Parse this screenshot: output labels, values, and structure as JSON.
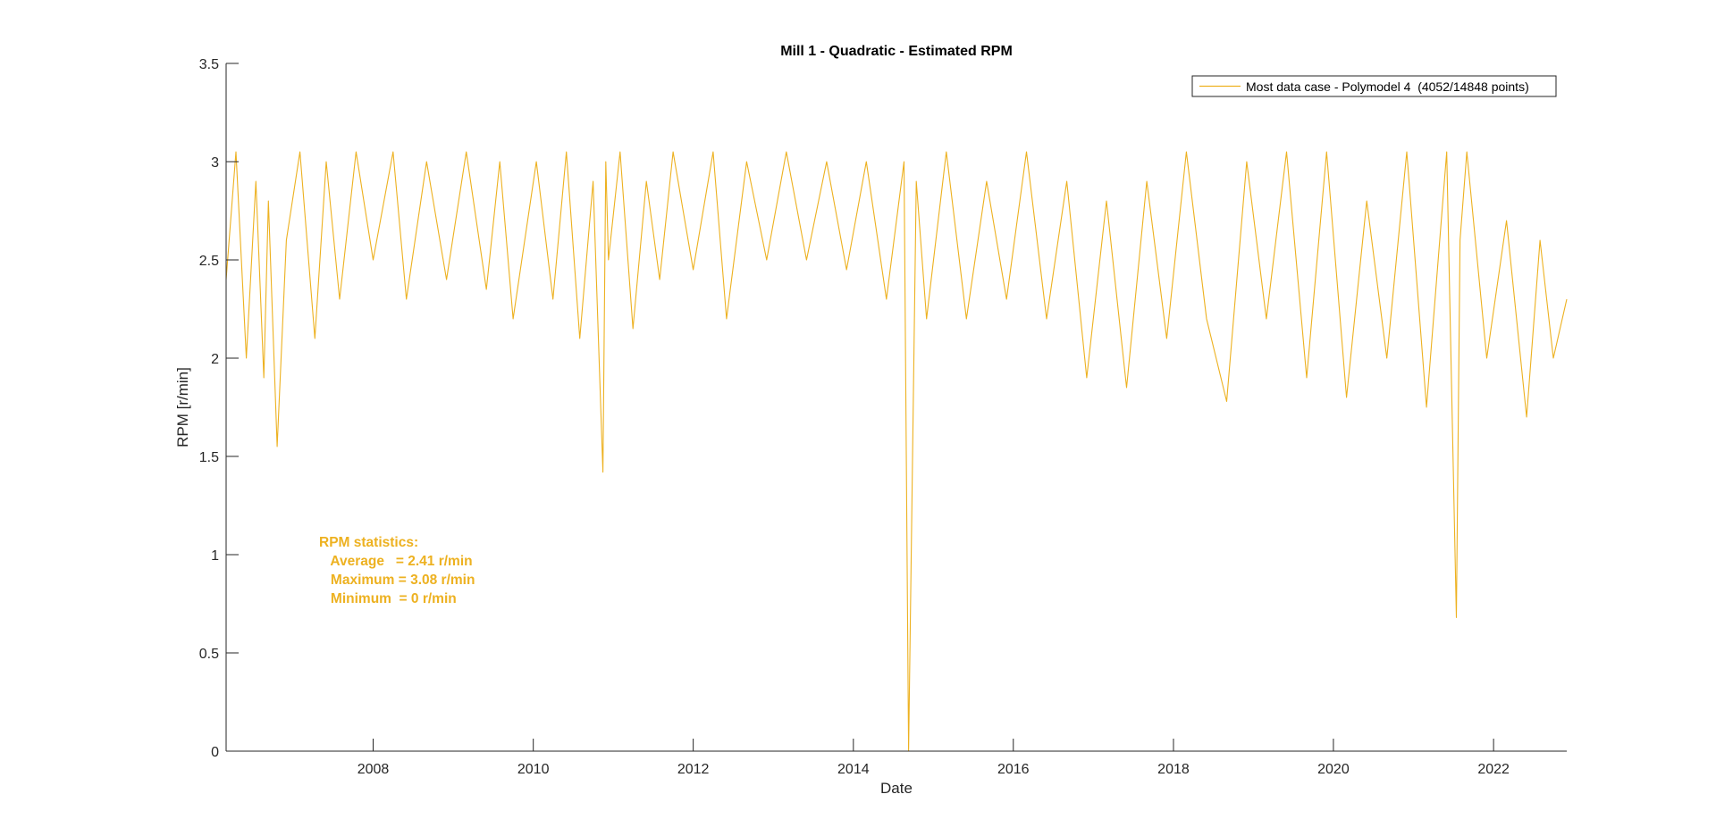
{
  "chart_data": {
    "type": "line",
    "title": "Mill 1 - Quadratic - Estimated RPM",
    "xlabel": "Date",
    "ylabel": "RPM [r/min]",
    "xlim": [
      "2006-03-01",
      "2022-12-01"
    ],
    "ylim": [
      0,
      3.5
    ],
    "grid": false,
    "legend_position": "top-right",
    "xticks": [
      {
        "date": "2008-01-01",
        "label": "2008"
      },
      {
        "date": "2010-01-01",
        "label": "2010"
      },
      {
        "date": "2012-01-01",
        "label": "2012"
      },
      {
        "date": "2014-01-01",
        "label": "2014"
      },
      {
        "date": "2016-01-01",
        "label": "2016"
      },
      {
        "date": "2018-01-01",
        "label": "2018"
      },
      {
        "date": "2020-01-01",
        "label": "2020"
      },
      {
        "date": "2022-01-01",
        "label": "2022"
      }
    ],
    "yticks": [
      {
        "value": 0,
        "label": "0"
      },
      {
        "value": 0.5,
        "label": "0.5"
      },
      {
        "value": 1,
        "label": "1"
      },
      {
        "value": 1.5,
        "label": "1.5"
      },
      {
        "value": 2,
        "label": "2"
      },
      {
        "value": 2.5,
        "label": "2.5"
      },
      {
        "value": 3,
        "label": "3"
      },
      {
        "value": 3.5,
        "label": "3.5"
      }
    ],
    "series": [
      {
        "name": "Most data case - Polymodel 4  (4052/14848 points)",
        "color": "#EDB120",
        "x": [
          "2006-03-01",
          "2006-04-15",
          "2006-06-01",
          "2006-07-15",
          "2006-08-20",
          "2006-09-10",
          "2006-10-20",
          "2006-12-01",
          "2007-02-01",
          "2007-04-10",
          "2007-06-01",
          "2007-08-01",
          "2007-10-15",
          "2008-01-01",
          "2008-04-01",
          "2008-06-01",
          "2008-09-01",
          "2008-12-01",
          "2009-03-01",
          "2009-06-01",
          "2009-08-01",
          "2009-10-01",
          "2010-01-15",
          "2010-04-01",
          "2010-06-01",
          "2010-08-01",
          "2010-10-01",
          "2010-11-15",
          "2010-11-28",
          "2010-12-10",
          "2011-02-01",
          "2011-04-01",
          "2011-06-01",
          "2011-08-01",
          "2011-10-01",
          "2012-01-01",
          "2012-04-01",
          "2012-06-01",
          "2012-09-01",
          "2012-12-01",
          "2013-03-01",
          "2013-06-01",
          "2013-09-01",
          "2013-12-01",
          "2014-03-01",
          "2014-06-01",
          "2014-08-20",
          "2014-09-10",
          "2014-09-25",
          "2014-10-15",
          "2014-12-01",
          "2015-03-01",
          "2015-06-01",
          "2015-09-01",
          "2015-12-01",
          "2016-03-01",
          "2016-06-01",
          "2016-09-01",
          "2016-12-01",
          "2017-03-01",
          "2017-06-01",
          "2017-09-01",
          "2017-12-01",
          "2018-03-01",
          "2018-06-01",
          "2018-09-01",
          "2018-12-01",
          "2019-03-01",
          "2019-06-01",
          "2019-09-01",
          "2019-12-01",
          "2020-03-01",
          "2020-06-01",
          "2020-09-01",
          "2020-12-01",
          "2021-03-01",
          "2021-06-01",
          "2021-07-15",
          "2021-08-01",
          "2021-09-01",
          "2021-12-01",
          "2022-03-01",
          "2022-06-01",
          "2022-08-01",
          "2022-10-01",
          "2022-12-01"
        ],
        "y": [
          2.4,
          3.05,
          2.0,
          2.9,
          1.9,
          2.8,
          1.55,
          2.6,
          3.05,
          2.1,
          3.0,
          2.3,
          3.05,
          2.5,
          3.05,
          2.3,
          3.0,
          2.4,
          3.05,
          2.35,
          3.0,
          2.2,
          3.0,
          2.3,
          3.05,
          2.1,
          2.9,
          1.42,
          3.0,
          2.5,
          3.05,
          2.15,
          2.9,
          2.4,
          3.05,
          2.45,
          3.05,
          2.2,
          3.0,
          2.5,
          3.05,
          2.5,
          3.0,
          2.45,
          3.0,
          2.3,
          3.0,
          0.0,
          1.25,
          2.9,
          2.2,
          3.05,
          2.2,
          2.9,
          2.3,
          3.05,
          2.2,
          2.9,
          1.9,
          2.8,
          1.85,
          2.9,
          2.1,
          3.05,
          2.2,
          1.78,
          3.0,
          2.2,
          3.05,
          1.9,
          3.05,
          1.8,
          2.8,
          2.0,
          3.05,
          1.75,
          3.05,
          0.68,
          2.6,
          3.05,
          2.0,
          2.7,
          1.7,
          2.6,
          2.0,
          2.3
        ]
      }
    ],
    "annotation": {
      "color": "#EDB120",
      "lines": [
        "RPM statistics:",
        "   Average   = 2.41 r/min",
        "   Maximum = 3.08 r/min",
        "   Minimum  = 0 r/min"
      ]
    }
  }
}
